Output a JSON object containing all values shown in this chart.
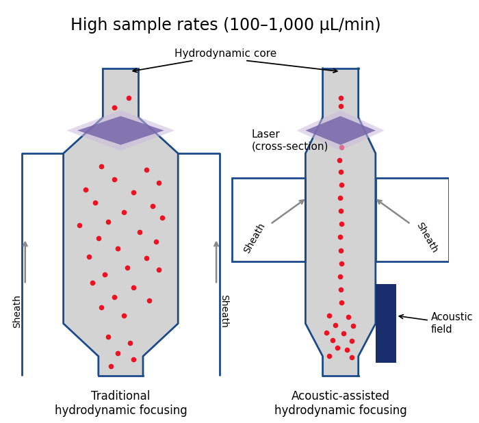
{
  "title": "High sample rates (100–1,000 μL/min)",
  "title_fontsize": 17,
  "bg_color": "#ffffff",
  "tube_color": "#d3d3d3",
  "tube_border_color": "#1a4a8a",
  "laser_color_inner": "#7766aa",
  "laser_color_outer": "#ccbbdd",
  "dot_color": "#ee1122",
  "acoustic_block_color": "#1a2e6e",
  "figsize": [
    7.0,
    6.18
  ],
  "dpi": 100,
  "label_hydrodynamic_core": "Hydrodynamic core",
  "label_laser": "Laser\n(cross-section)",
  "label_sheath": "Sheath",
  "label_traditional": "Traditional\nhydrodynamic focusing",
  "label_acoustic": "Acoustic-assisted\nhydrodynamic focusing",
  "label_acoustic_field": "Acoustic\nfield"
}
